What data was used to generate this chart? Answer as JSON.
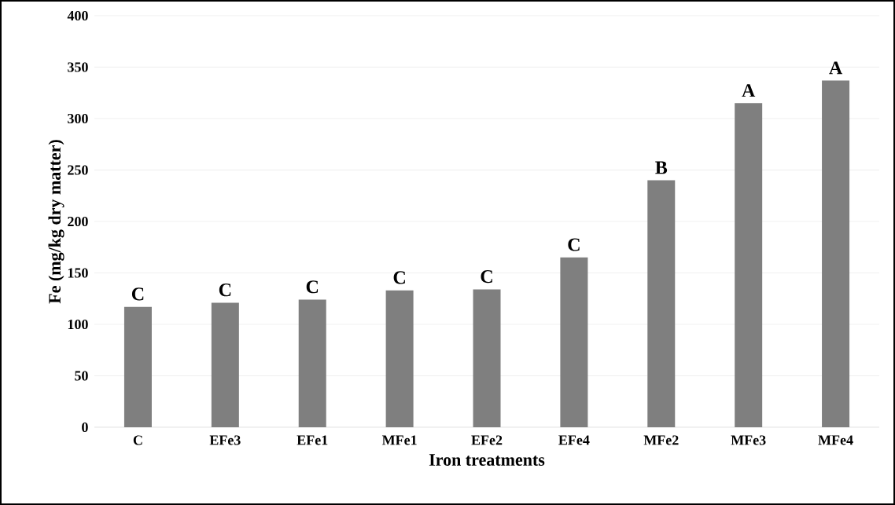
{
  "chart_data": {
    "type": "bar",
    "xlabel": "Iron treatments",
    "ylabel": "Fe (mg/kg dry matter)",
    "categories": [
      "C",
      "EFe3",
      "EFe1",
      "MFe1",
      "EFe2",
      "EFe4",
      "MFe2",
      "MFe3",
      "MFe4"
    ],
    "values": [
      117,
      121,
      124,
      133,
      134,
      165,
      240,
      315,
      337
    ],
    "color": "#7f7f7f",
    "ylim": [
      0,
      400
    ],
    "yticks": [
      0,
      50,
      100,
      150,
      200,
      250,
      300,
      350,
      400
    ],
    "grid": "y",
    "annotations": [
      {
        "text": "C",
        "x": "C",
        "y": 117
      },
      {
        "text": "C",
        "x": "EFe3",
        "y": 121
      },
      {
        "text": "C",
        "x": "EFe1",
        "y": 124
      },
      {
        "text": "C",
        "x": "MFe1",
        "y": 133
      },
      {
        "text": "C",
        "x": "EFe2",
        "y": 134
      },
      {
        "text": "C",
        "x": "EFe4",
        "y": 165
      },
      {
        "text": "B",
        "x": "MFe2",
        "y": 240
      },
      {
        "text": "A",
        "x": "MFe3",
        "y": 315
      },
      {
        "text": "A",
        "x": "MFe4",
        "y": 337
      }
    ]
  }
}
